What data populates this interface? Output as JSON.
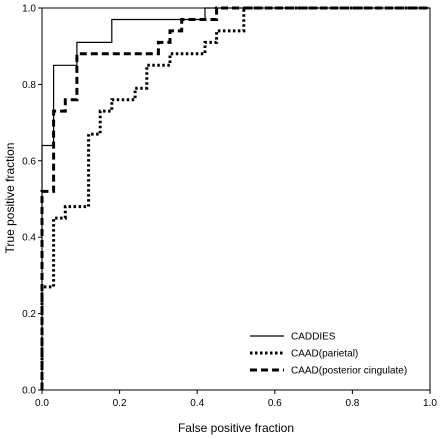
{
  "chart_data": {
    "type": "line",
    "xlabel": "False positive fraction",
    "ylabel": "True positive fraction",
    "xlim": [
      0,
      1
    ],
    "ylim": [
      0,
      1
    ],
    "xticks": [
      "0.0",
      "0.2",
      "0.4",
      "0.6",
      "0.8",
      "1.0"
    ],
    "yticks": [
      "0.0",
      "0.2",
      "0.4",
      "0.6",
      "0.8",
      "1.0"
    ],
    "grid": false,
    "legend_position": "bottom-right",
    "series": [
      {
        "name": "CADDIES",
        "style": "solid",
        "points": [
          [
            0,
            0
          ],
          [
            0,
            0.64
          ],
          [
            0.03,
            0.64
          ],
          [
            0.03,
            0.85
          ],
          [
            0.09,
            0.85
          ],
          [
            0.09,
            0.91
          ],
          [
            0.18,
            0.91
          ],
          [
            0.18,
            0.97
          ],
          [
            0.42,
            0.97
          ],
          [
            0.42,
            1.0
          ],
          [
            1.0,
            1.0
          ]
        ]
      },
      {
        "name": "CAAD(parietal)",
        "style": "dotted",
        "points": [
          [
            0,
            0
          ],
          [
            0,
            0.27
          ],
          [
            0.03,
            0.27
          ],
          [
            0.03,
            0.45
          ],
          [
            0.06,
            0.45
          ],
          [
            0.06,
            0.48
          ],
          [
            0.12,
            0.48
          ],
          [
            0.12,
            0.67
          ],
          [
            0.15,
            0.67
          ],
          [
            0.15,
            0.73
          ],
          [
            0.18,
            0.73
          ],
          [
            0.18,
            0.76
          ],
          [
            0.24,
            0.76
          ],
          [
            0.24,
            0.79
          ],
          [
            0.27,
            0.79
          ],
          [
            0.27,
            0.85
          ],
          [
            0.33,
            0.85
          ],
          [
            0.33,
            0.88
          ],
          [
            0.42,
            0.88
          ],
          [
            0.42,
            0.91
          ],
          [
            0.45,
            0.91
          ],
          [
            0.45,
            0.94
          ],
          [
            0.52,
            0.94
          ],
          [
            0.52,
            1.0
          ],
          [
            1.0,
            1.0
          ]
        ]
      },
      {
        "name": "CAAD(posterior cingulate)",
        "style": "dashed",
        "points": [
          [
            0,
            0
          ],
          [
            0,
            0.52
          ],
          [
            0.03,
            0.52
          ],
          [
            0.03,
            0.73
          ],
          [
            0.06,
            0.73
          ],
          [
            0.06,
            0.76
          ],
          [
            0.09,
            0.76
          ],
          [
            0.09,
            0.88
          ],
          [
            0.3,
            0.88
          ],
          [
            0.3,
            0.91
          ],
          [
            0.33,
            0.91
          ],
          [
            0.33,
            0.94
          ],
          [
            0.36,
            0.94
          ],
          [
            0.36,
            0.97
          ],
          [
            0.45,
            0.97
          ],
          [
            0.45,
            1.0
          ],
          [
            1.0,
            1.0
          ]
        ]
      }
    ]
  }
}
